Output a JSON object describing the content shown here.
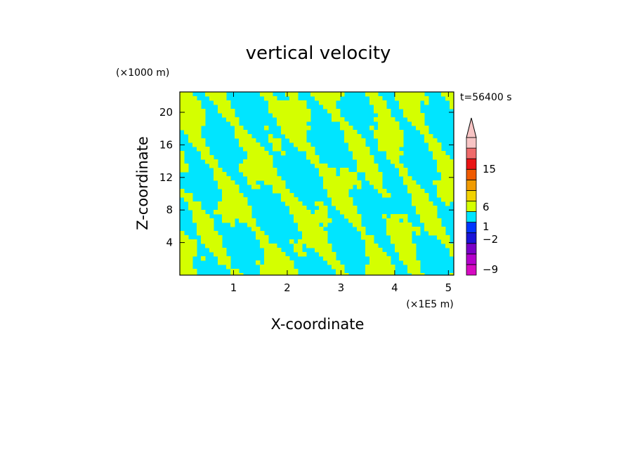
{
  "chart_data": {
    "type": "heatmap",
    "title": "vertical velocity",
    "xlabel": "X-coordinate",
    "ylabel": "Z-coordinate",
    "x_unit": "(×1E5 m)",
    "y_unit": "(×1000 m)",
    "time_label": "t=56400 s",
    "xlim": [
      0,
      5.1
    ],
    "ylim": [
      0,
      22.5
    ],
    "x_ticks": [
      1,
      2,
      3,
      4,
      5
    ],
    "x_tick_labels": [
      "1",
      "2",
      "3",
      "4",
      "5"
    ],
    "y_ticks": [
      4,
      8,
      12,
      16,
      20
    ],
    "y_tick_labels": [
      "4",
      "8",
      "12",
      "16",
      "20"
    ],
    "field_colors": {
      "positive": "#d4ff00",
      "negative": "#00e5ff"
    },
    "colorbar": {
      "levels": [
        {
          "color": "#d60ac2"
        },
        {
          "color": "#b400cc"
        },
        {
          "color": "#7a00c8"
        },
        {
          "color": "#1a14d8"
        },
        {
          "color": "#0036ff"
        },
        {
          "color": "#00e5ff"
        },
        {
          "color": "#d4ff00"
        },
        {
          "color": "#f2d200"
        },
        {
          "color": "#f09b00"
        },
        {
          "color": "#f05a00"
        },
        {
          "color": "#ea1414"
        },
        {
          "color": "#ef6a6a"
        },
        {
          "color": "#f7c4c4"
        }
      ],
      "labels": [
        {
          "text": "15",
          "value": 15
        },
        {
          "text": "6",
          "value": 6
        },
        {
          "text": "1",
          "value": 1
        },
        {
          "text": "−2",
          "value": -2
        },
        {
          "text": "−9",
          "value": -9
        }
      ]
    }
  }
}
